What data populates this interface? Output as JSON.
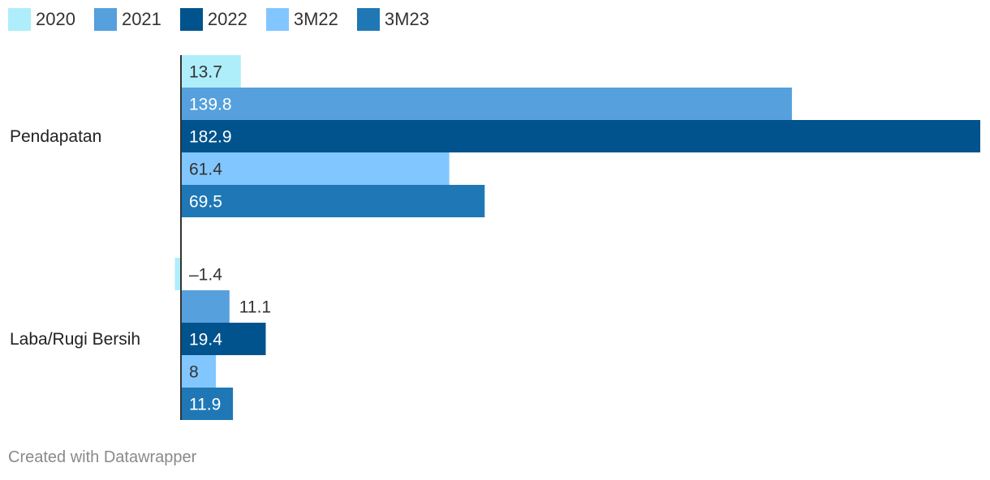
{
  "chart_data": {
    "type": "bar",
    "orientation": "horizontal",
    "categories": [
      "Pendapatan",
      "Laba/Rugi Bersih"
    ],
    "series": [
      {
        "name": "2020",
        "values": [
          13.7,
          -1.4
        ],
        "labels": [
          "13.7",
          "–1.4"
        ],
        "color": "#aeeefa"
      },
      {
        "name": "2021",
        "values": [
          139.8,
          11.1
        ],
        "labels": [
          "139.8",
          "11.1"
        ],
        "color": "#55a0dd"
      },
      {
        "name": "2022",
        "values": [
          182.9,
          19.4
        ],
        "labels": [
          "182.9",
          "19.4"
        ],
        "color": "#00538c"
      },
      {
        "name": "3M22",
        "values": [
          61.4,
          8
        ],
        "labels": [
          "61.4",
          "8"
        ],
        "color": "#82c6ff"
      },
      {
        "name": "3M23",
        "values": [
          69.5,
          11.9
        ],
        "labels": [
          "69.5",
          "11.9"
        ],
        "color": "#1f78b5"
      }
    ],
    "legend_position": "top-left",
    "grid": false
  },
  "footer": {
    "credit": "Created with Datawrapper"
  }
}
